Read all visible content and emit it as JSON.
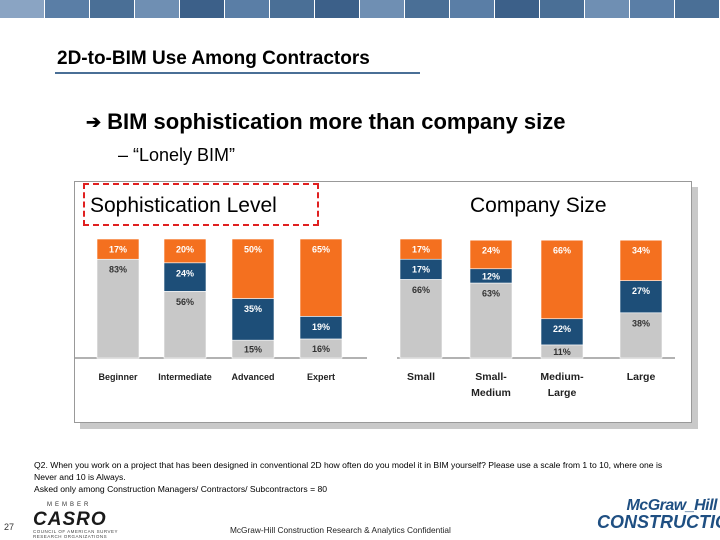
{
  "header": {
    "bar_colors": [
      "#8aa4c3",
      "#5a7ea6",
      "#4a6f96",
      "#6f8fb3",
      "#3c6089",
      "#5a7ea6",
      "#4a6f96",
      "#3c6089",
      "#6f8fb3",
      "#4a6f96",
      "#5a7ea6",
      "#3c6089",
      "#4a6f96",
      "#6f8fb3",
      "#5a7ea6",
      "#4a6f96"
    ]
  },
  "slide": {
    "title": "2D-to-BIM Use Among Contractors",
    "bullet_arrow": "➔",
    "bullet": "BIM sophistication more than company size",
    "subbullet": "– “Lonely BIM”"
  },
  "chart_data": [
    {
      "type": "bar",
      "stacked": true,
      "title": "Sophistication Level",
      "categories": [
        "Beginner",
        "Intermediate",
        "Advanced",
        "Expert"
      ],
      "series": [
        {
          "name": "bottom (grey)",
          "color": "#c8c8c8",
          "values": [
            83,
            56,
            15,
            16
          ]
        },
        {
          "name": "middle (navy)",
          "color": "#1d4e78",
          "values": [
            0,
            24,
            35,
            19
          ]
        },
        {
          "name": "top (orange)",
          "color": "#f4701f",
          "values": [
            17,
            20,
            50,
            65
          ]
        }
      ],
      "labels": [
        [
          "83%",
          "",
          "17%"
        ],
        [
          "56%",
          "24%",
          "20%"
        ],
        [
          "15%",
          "35%",
          "50%"
        ],
        [
          "16%",
          "19%",
          "65%"
        ]
      ]
    },
    {
      "type": "bar",
      "stacked": true,
      "title": "Company Size",
      "categories": [
        "Small",
        "Small-\nMedium",
        "Medium-\nLarge",
        "Large"
      ],
      "series": [
        {
          "name": "bottom (grey)",
          "color": "#c8c8c8",
          "values": [
            66,
            63,
            11,
            38
          ]
        },
        {
          "name": "middle (navy)",
          "color": "#1d4e78",
          "values": [
            17,
            12,
            22,
            27
          ]
        },
        {
          "name": "top (orange)",
          "color": "#f4701f",
          "values": [
            17,
            24,
            66,
            34
          ]
        }
      ],
      "labels": [
        [
          "66%",
          "17%",
          "17%"
        ],
        [
          "63%",
          "12%",
          "24%"
        ],
        [
          "11%",
          "22%",
          "66%"
        ],
        [
          "38%",
          "27%",
          "34%"
        ]
      ]
    }
  ],
  "footer": {
    "footnote_line1": "Q2. When you work on a project that has been designed in conventional 2D how often do you model it in BIM yourself? Please use a scale from 1 to 10, where one is Never and 10 is Always.",
    "footnote_line2": "Asked only among Construction Managers/ Contractors/ Subcontractors = 80",
    "page_number": "27",
    "casro_small": "MEMBER",
    "casro_big": "CASRO",
    "casro_tiny": "COUNCIL OF AMERICAN SURVEY RESEARCH ORGANIZATIONS",
    "confidential": "McGraw-Hill Construction Research & Analytics Confidential",
    "logo_line1": "McGraw_Hill",
    "logo_line2": "CONSTRUCTION"
  }
}
